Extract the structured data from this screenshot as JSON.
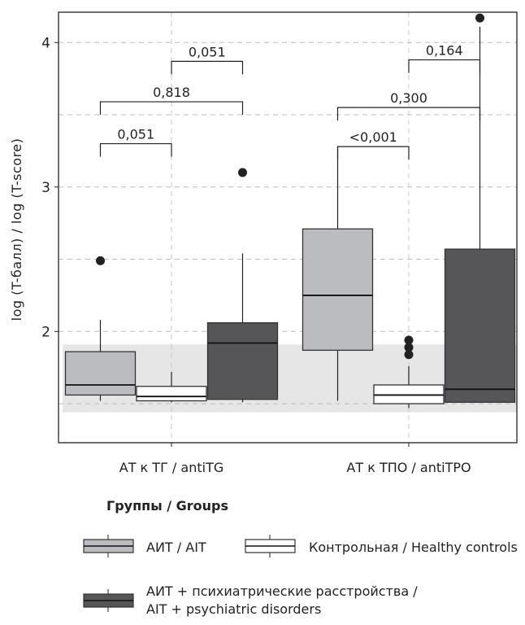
{
  "chart_data": {
    "type": "boxplot",
    "title": "",
    "xlabel": "",
    "ylabel": "log (T-балл) / log (T-score)",
    "ylim": [
      1.23,
      4.21
    ],
    "yticks": [
      2,
      3,
      4
    ],
    "ytick_labels": [
      "2",
      "3",
      "4"
    ],
    "grid": true,
    "categories": [
      "АТ к ТГ / antiTG",
      "АТ к ТПО / antiTPO"
    ],
    "reference_band": {
      "low": 1.44,
      "high": 1.91,
      "color": "#e6e6e6"
    },
    "series": [
      {
        "name": "АИТ / AIT",
        "fill": "#bbbcc0",
        "boxes": [
          {
            "whisker_low": 1.52,
            "q1": 1.56,
            "median": 1.63,
            "q3": 1.86,
            "whisker_high": 2.08,
            "outliers": [
              2.49
            ]
          },
          {
            "whisker_low": 1.52,
            "q1": 1.87,
            "median": 2.25,
            "q3": 2.71,
            "whisker_high": 3.28,
            "outliers": []
          }
        ]
      },
      {
        "name": "Контрольная / Healthy controls",
        "fill": "#ffffff",
        "boxes": [
          {
            "whisker_low": 1.51,
            "q1": 1.52,
            "median": 1.55,
            "q3": 1.62,
            "whisker_high": 1.72,
            "outliers": []
          },
          {
            "whisker_low": 1.47,
            "q1": 1.5,
            "median": 1.56,
            "q3": 1.63,
            "whisker_high": 1.76,
            "outliers": [
              1.84,
              1.89,
              1.94
            ]
          }
        ]
      },
      {
        "name": "АИТ + психиатрические расстройства / AIT + psychiatric disorders",
        "fill": "#565658",
        "boxes": [
          {
            "whisker_low": 1.51,
            "q1": 1.53,
            "median": 1.92,
            "q3": 2.06,
            "whisker_high": 2.54,
            "outliers": [
              3.1
            ]
          },
          {
            "whisker_low": 1.51,
            "q1": 1.51,
            "median": 1.6,
            "q3": 2.57,
            "whisker_high": 4.11,
            "outliers": [
              4.17
            ]
          }
        ]
      }
    ],
    "annotations": [
      {
        "category": 0,
        "from": 0,
        "to": 1,
        "y": 3.3,
        "label": "0,051"
      },
      {
        "category": 0,
        "from": 0,
        "to": 2,
        "y": 3.59,
        "label": "0,818"
      },
      {
        "category": 0,
        "from": 1,
        "to": 2,
        "y": 3.87,
        "label": "0,051"
      },
      {
        "category": 1,
        "from": 0,
        "to": 1,
        "y": 3.28,
        "label": "<0,001"
      },
      {
        "category": 1,
        "from": 0,
        "to": 2,
        "y": 3.55,
        "label": "0,300"
      },
      {
        "category": 1,
        "from": 1,
        "to": 2,
        "y": 3.88,
        "label": "0,164"
      }
    ],
    "legend": {
      "title": "Группы / Groups",
      "placement": "bottom",
      "entries": [
        {
          "label": "АИТ / AIT"
        },
        {
          "label": "Контрольная / Healthy controls"
        },
        {
          "label_line1": "АИТ + психиатрические расстройства /",
          "label_line2": "AIT + psychiatric disorders"
        }
      ]
    }
  }
}
